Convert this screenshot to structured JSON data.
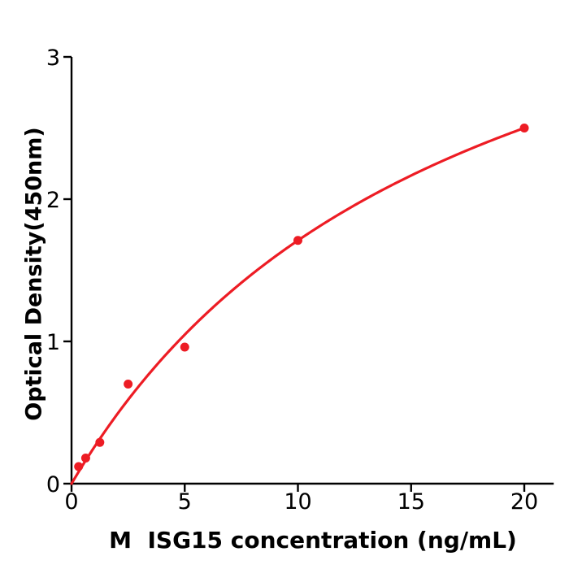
{
  "chart_data": {
    "type": "scatter",
    "title": "",
    "xlabel": "M  ISG15 concentration (ng/mL)",
    "ylabel": "Optical Density(450nm)",
    "points": [
      {
        "x": 0.3125,
        "y": 0.12
      },
      {
        "x": 0.625,
        "y": 0.18
      },
      {
        "x": 1.25,
        "y": 0.29
      },
      {
        "x": 2.5,
        "y": 0.7
      },
      {
        "x": 5,
        "y": 0.96
      },
      {
        "x": 10,
        "y": 1.71
      },
      {
        "x": 20,
        "y": 2.5
      }
    ],
    "fit_curve": {
      "shape": "saturating",
      "formula": "y = a*x/(b+x)",
      "a": 4.65,
      "b": 17.2,
      "x_range": [
        0,
        20
      ]
    },
    "x_ticks": [
      0,
      5,
      10,
      15,
      20
    ],
    "y_ticks": [
      0,
      1,
      2,
      3
    ],
    "xlim": [
      0,
      21.3
    ],
    "ylim": [
      0,
      3
    ],
    "grid": false,
    "legend": "none",
    "colors": {
      "series": "#ed1c24",
      "axes": "#000000",
      "background": "#ffffff"
    }
  }
}
